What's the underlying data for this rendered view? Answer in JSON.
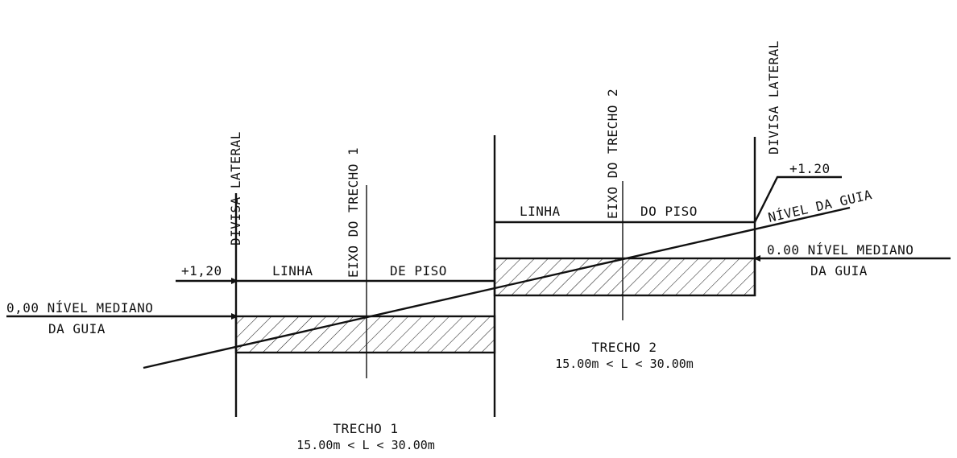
{
  "labels": {
    "divisa_lateral_left": "DIVISA LATERAL",
    "divisa_lateral_right": "DIVISA LATERAL",
    "eixo_trecho_1": "EIXO DO TRECHO 1",
    "eixo_trecho_2": "EIXO DO TRECHO 2",
    "left_plus": "+1,20",
    "right_plus": "+1.20",
    "linha_1": "LINHA",
    "de_piso_1": "DE PISO",
    "linha_2": "LINHA",
    "do_piso_2": "DO PISO",
    "nivel_guia": "NÍVEL DA GUIA",
    "left_nivel_line1": "0,00 NÍVEL MEDIANO",
    "left_nivel_line2": "DA GUIA",
    "right_nivel_line1": "0.00 NÍVEL MEDIANO",
    "right_nivel_line2": "DA GUIA",
    "trecho1_title": "TRECHO 1",
    "trecho1_range": "15.00m < L < 30.00m",
    "trecho2_title": "TRECHO 2",
    "trecho2_range": "15.00m < L < 30.00m"
  }
}
